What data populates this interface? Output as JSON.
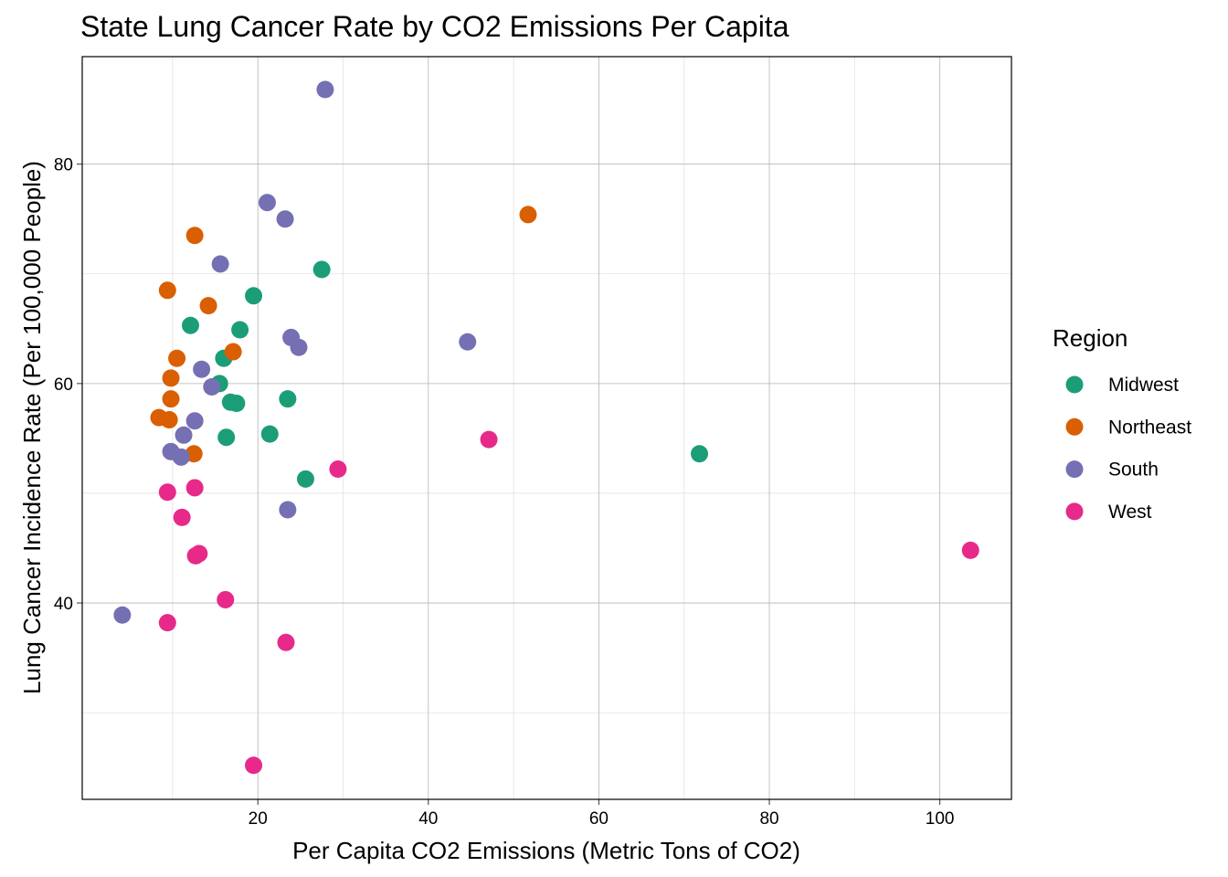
{
  "chart_data": {
    "type": "scatter",
    "title": "State Lung Cancer Rate by CO2 Emissions Per Capita",
    "x_label": "Per Capita CO2 Emissions (Metric Tons of CO2)",
    "y_label": "Lung Cancer Incidence Rate (Per 100,000 People)",
    "legend_title": "Region",
    "legend_position": "right",
    "grid": true,
    "xlim": [
      -0.6,
      108.4
    ],
    "ylim": [
      22.1,
      89.8
    ],
    "xticks": [
      20,
      40,
      60,
      80,
      100
    ],
    "yticks": [
      40,
      60,
      80
    ],
    "xminor": [
      10,
      30,
      50,
      70,
      90
    ],
    "yminor": [
      30,
      50,
      70
    ],
    "series": [
      {
        "name": "Midwest",
        "color": "#1B9E77",
        "x": [
          12.1,
          19.5,
          17.9,
          27.5,
          16.0,
          15.5,
          16.8,
          17.5,
          23.5,
          16.3,
          21.4,
          25.6,
          71.8
        ],
        "y": [
          65.3,
          68.0,
          64.9,
          70.4,
          62.3,
          60.0,
          58.3,
          58.2,
          58.6,
          55.1,
          55.4,
          51.3,
          53.6
        ]
      },
      {
        "name": "Northeast",
        "color": "#D95F02",
        "x": [
          12.6,
          51.7,
          9.4,
          14.2,
          17.1,
          10.5,
          9.8,
          9.8,
          8.4,
          9.6,
          12.5
        ],
        "y": [
          73.5,
          75.4,
          68.5,
          67.1,
          62.9,
          62.3,
          60.5,
          58.6,
          56.9,
          56.7,
          53.6
        ]
      },
      {
        "name": "South",
        "color": "#7570B3",
        "x": [
          27.9,
          21.1,
          23.2,
          15.6,
          23.9,
          24.8,
          44.6,
          13.4,
          14.6,
          12.6,
          11.3,
          9.8,
          11.0,
          23.5,
          4.1
        ],
        "y": [
          86.8,
          76.5,
          75.0,
          70.9,
          64.2,
          63.3,
          63.8,
          61.3,
          59.7,
          56.6,
          55.3,
          53.8,
          53.3,
          48.5,
          38.9
        ]
      },
      {
        "name": "West",
        "color": "#E7298A",
        "x": [
          47.1,
          29.4,
          9.4,
          12.6,
          11.1,
          12.7,
          13.1,
          103.6,
          16.2,
          9.4,
          23.3,
          19.5
        ],
        "y": [
          54.9,
          52.2,
          50.1,
          50.5,
          47.8,
          44.3,
          44.5,
          44.8,
          40.3,
          38.2,
          36.4,
          25.2
        ]
      }
    ]
  }
}
